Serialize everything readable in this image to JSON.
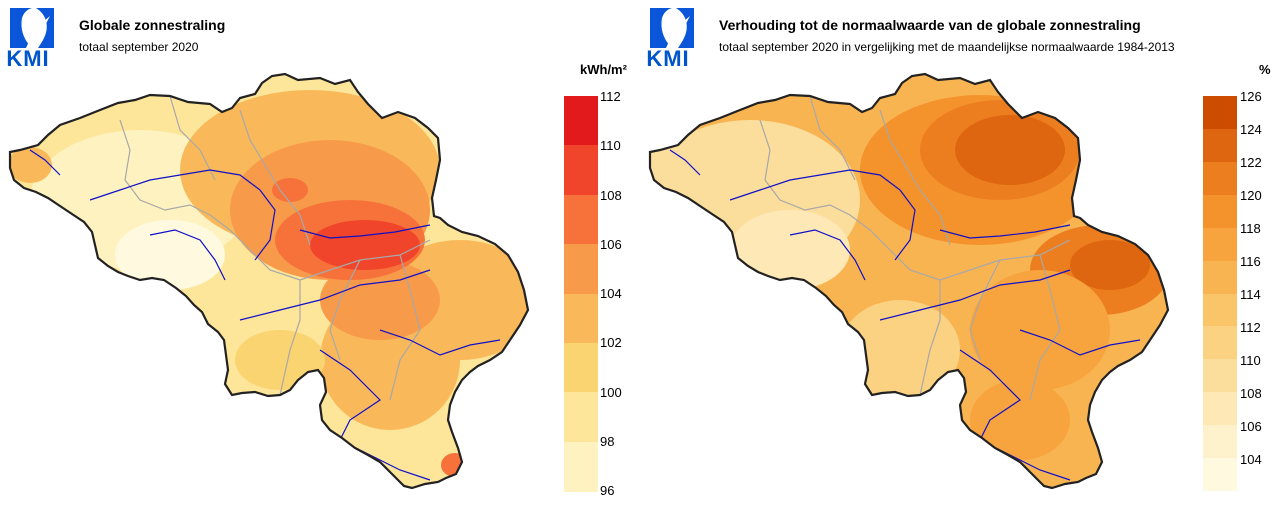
{
  "maps": [
    {
      "id": "left",
      "logo_text": "KMI",
      "title": "Globale zonnestraling",
      "subtitle": "totaal september 2020",
      "unit": "kWh/m²",
      "legend": {
        "ticks": [
          "112",
          "110",
          "108",
          "106",
          "104",
          "102",
          "100",
          "98",
          "96"
        ],
        "colors": [
          "#e31a1c",
          "#f0452a",
          "#f6723a",
          "#f79a4a",
          "#f9b95a",
          "#fbd472",
          "#fde59a",
          "#fef3c0"
        ]
      },
      "colors": {
        "low": "#fde9a8",
        "mid": "#f9b95a",
        "high": "#f0452a",
        "peak": "#e31a1c"
      }
    },
    {
      "id": "right",
      "logo_text": "KMI",
      "title": "Verhouding tot de normaalwaarde van de globale zonnestraling",
      "subtitle": "totaal september 2020 in vergelijking met de maandelijkse normaalwaarde 1984-2013",
      "unit": "%",
      "legend": {
        "ticks": [
          "126",
          "124",
          "122",
          "120",
          "118",
          "116",
          "114",
          "112",
          "110",
          "108",
          "106",
          "104"
        ],
        "colors": [
          "#cc4c02",
          "#de6610",
          "#ec7e20",
          "#f4922c",
          "#f7a43e",
          "#f9b452",
          "#fac468",
          "#fbd282",
          "#fcde9c",
          "#fde8b6",
          "#fef2cc",
          "#fffadf"
        ]
      },
      "colors": {
        "low": "#fbe1a8",
        "mid": "#f6b35e",
        "high": "#e9822e",
        "peak": "#d9661a"
      }
    }
  ]
}
